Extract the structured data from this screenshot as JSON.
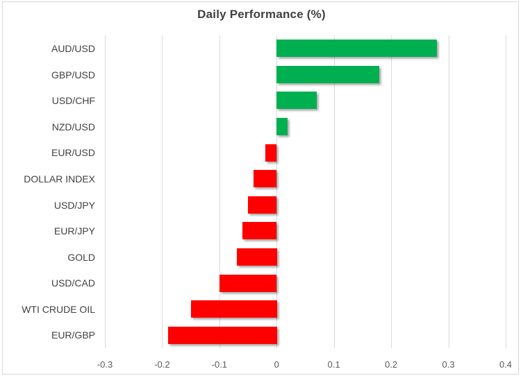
{
  "chart_data": {
    "type": "bar",
    "orientation": "horizontal",
    "title": "Daily Performance (%)",
    "categories": [
      "AUD/USD",
      "GBP/USD",
      "USD/CHF",
      "NZD/USD",
      "EUR/USD",
      "DOLLAR INDEX",
      "USD/JPY",
      "EUR/JPY",
      "GOLD",
      "USD/CAD",
      "WTI CRUDE OIL",
      "EUR/GBP"
    ],
    "values": [
      0.28,
      0.18,
      0.07,
      0.02,
      -0.02,
      -0.04,
      -0.05,
      -0.06,
      -0.07,
      -0.1,
      -0.15,
      -0.19
    ],
    "xlabel": "",
    "ylabel": "",
    "xlim": [
      -0.3,
      0.4
    ],
    "xticks": [
      -0.3,
      -0.2,
      -0.1,
      0,
      0.1,
      0.2,
      0.3,
      0.4
    ],
    "xtick_labels": [
      "-0.3",
      "-0.2",
      "-0.1",
      "0",
      "0.1",
      "0.2",
      "0.3",
      "0.4"
    ],
    "grid": "vertical",
    "legend": "none",
    "colors": {
      "positive_bar": "#00B050",
      "negative_bar": "#FF0000",
      "gridline": "#D9D9D9",
      "title_text": "#404040",
      "category_text": "#404040",
      "tick_text": "#595959",
      "frame_border": "#D6D6D6",
      "background": "#FFFFFF"
    }
  }
}
